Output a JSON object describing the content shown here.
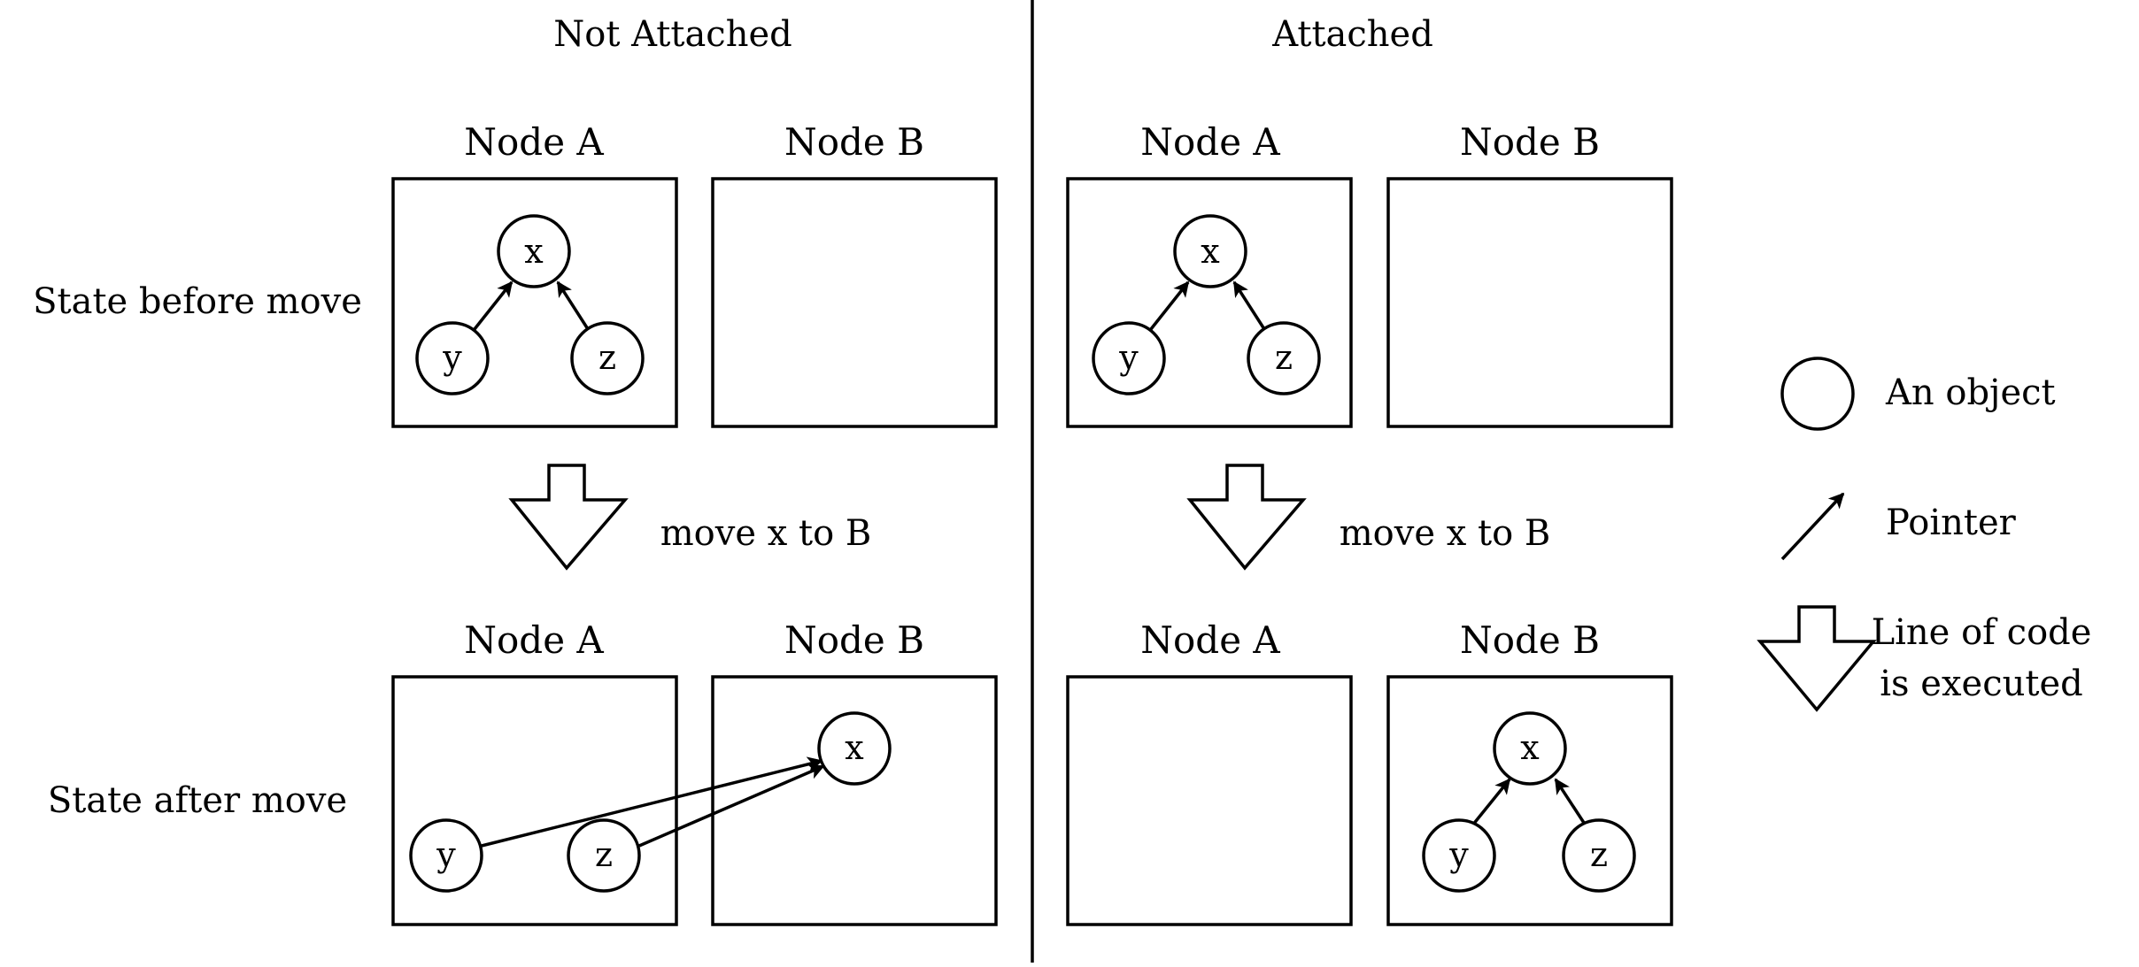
{
  "columns": {
    "not_attached": "Not Attached",
    "attached": "Attached"
  },
  "rows": {
    "before": "State before move",
    "after": "State after move"
  },
  "nodes": {
    "a": "Node A",
    "b": "Node B"
  },
  "objects": {
    "x": "x",
    "y": "y",
    "z": "z"
  },
  "step_label": "move x to B",
  "legend": {
    "object": "An object",
    "pointer": "Pointer",
    "exec_line1": "Line of code",
    "exec_line2": "is executed"
  }
}
